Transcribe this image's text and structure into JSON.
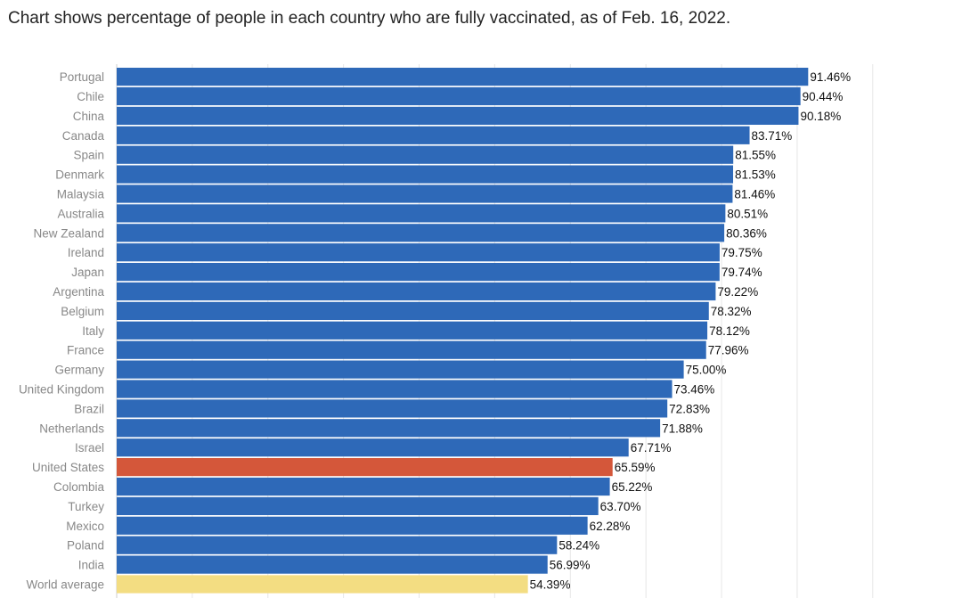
{
  "caption": "Chart shows percentage of people in each country who are fully vaccinated, as of Feb. 16, 2022.",
  "colors": {
    "default": "#2e69b8",
    "highlight": "#d4573a",
    "average": "#f3dd82",
    "grid": "#e6e6e6"
  },
  "chart_data": {
    "type": "bar",
    "orientation": "horizontal",
    "title": "",
    "xlabel": "",
    "ylabel": "",
    "xlim": [
      0,
      100
    ],
    "grid": true,
    "legend": "none",
    "value_suffix": "%",
    "categories": [
      "Portugal",
      "Chile",
      "China",
      "Canada",
      "Spain",
      "Denmark",
      "Malaysia",
      "Australia",
      "New Zealand",
      "Ireland",
      "Japan",
      "Argentina",
      "Belgium",
      "Italy",
      "France",
      "Germany",
      "United Kingdom",
      "Brazil",
      "Netherlands",
      "Israel",
      "United States",
      "Colombia",
      "Turkey",
      "Mexico",
      "Poland",
      "India",
      "World average"
    ],
    "values": [
      91.46,
      90.44,
      90.18,
      83.71,
      81.55,
      81.53,
      81.46,
      80.51,
      80.36,
      79.75,
      79.74,
      79.22,
      78.32,
      78.12,
      77.96,
      75.0,
      73.46,
      72.83,
      71.88,
      67.71,
      65.59,
      65.22,
      63.7,
      62.28,
      58.24,
      56.99,
      54.39
    ],
    "value_labels": [
      "91.46%",
      "90.44%",
      "90.18%",
      "83.71%",
      "81.55%",
      "81.53%",
      "81.46%",
      "80.51%",
      "80.36%",
      "79.75%",
      "79.74%",
      "79.22%",
      "78.32%",
      "78.12%",
      "77.96%",
      "75.00%",
      "73.46%",
      "72.83%",
      "71.88%",
      "67.71%",
      "65.59%",
      "65.22%",
      "63.70%",
      "62.28%",
      "58.24%",
      "56.99%",
      "54.39%"
    ],
    "highlight": {
      "United States": "highlight",
      "World average": "average"
    }
  }
}
